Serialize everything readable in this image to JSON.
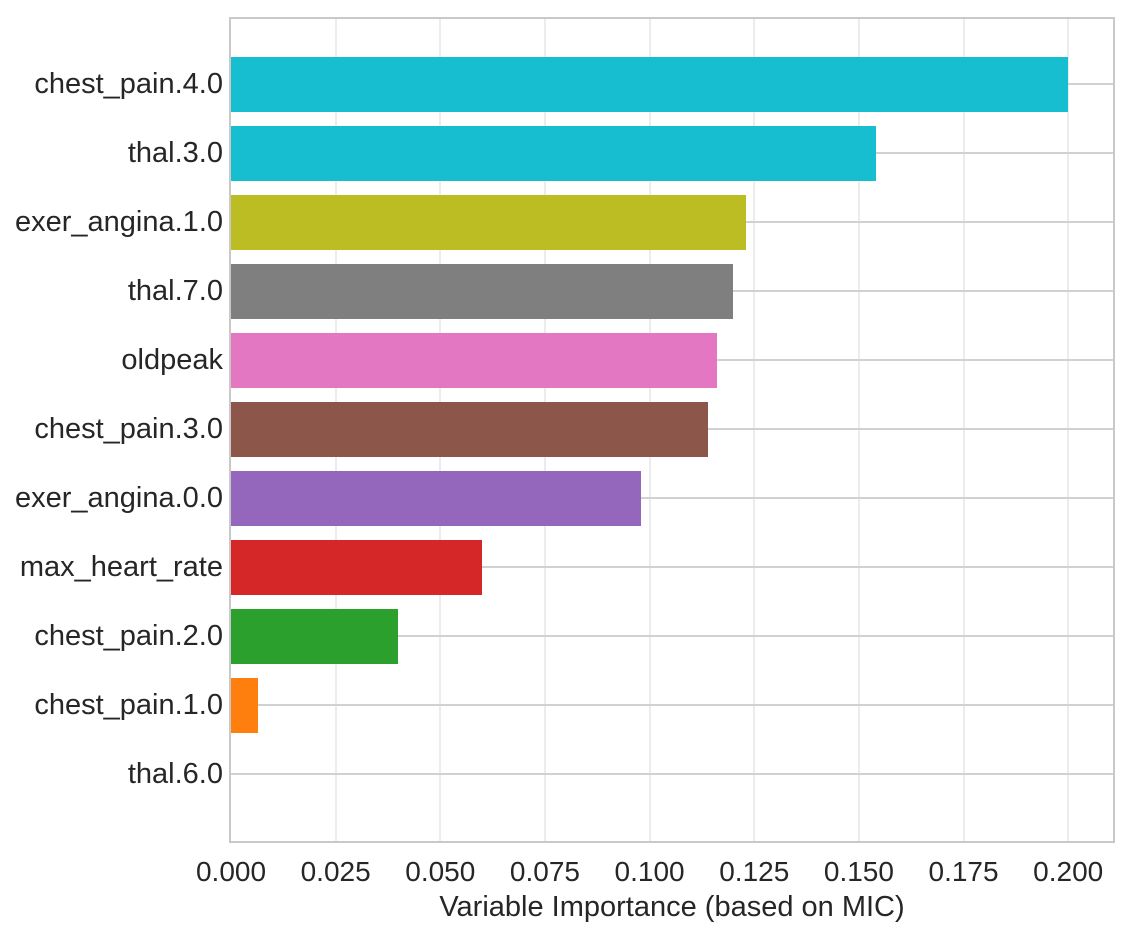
{
  "chart_data": {
    "type": "bar",
    "orientation": "horizontal",
    "title": "",
    "xlabel": "Variable Importance (based on MIC)",
    "ylabel": "",
    "categories": [
      "chest_pain.4.0",
      "thal.3.0",
      "exer_angina.1.0",
      "thal.7.0",
      "oldpeak",
      "chest_pain.3.0",
      "exer_angina.0.0",
      "max_heart_rate",
      "chest_pain.2.0",
      "chest_pain.1.0",
      "thal.6.0"
    ],
    "values": [
      0.2,
      0.154,
      0.123,
      0.12,
      0.116,
      0.114,
      0.098,
      0.06,
      0.04,
      0.0065,
      0.0
    ],
    "bar_colors": [
      "#17becf",
      "#17becf",
      "#bcbd22",
      "#7f7f7f",
      "#e377c2",
      "#8c564b",
      "#9467bd",
      "#d62728",
      "#2ca02c",
      "#ff7f0e",
      "#1f77b4"
    ],
    "xlim": [
      0,
      0.2107
    ],
    "x_ticks": [
      0.0,
      0.025,
      0.05,
      0.075,
      0.1,
      0.125,
      0.15,
      0.175,
      0.2
    ],
    "x_tick_labels": [
      "0.000",
      "0.025",
      "0.050",
      "0.075",
      "0.100",
      "0.125",
      "0.150",
      "0.175",
      "0.200"
    ],
    "grid": "both",
    "legend": "none",
    "colors": {
      "x_grid": "#ececec",
      "y_grid": "#d1d1d1",
      "spine": "#c9c9c9",
      "text": "#262626",
      "background": "#ffffff"
    }
  }
}
